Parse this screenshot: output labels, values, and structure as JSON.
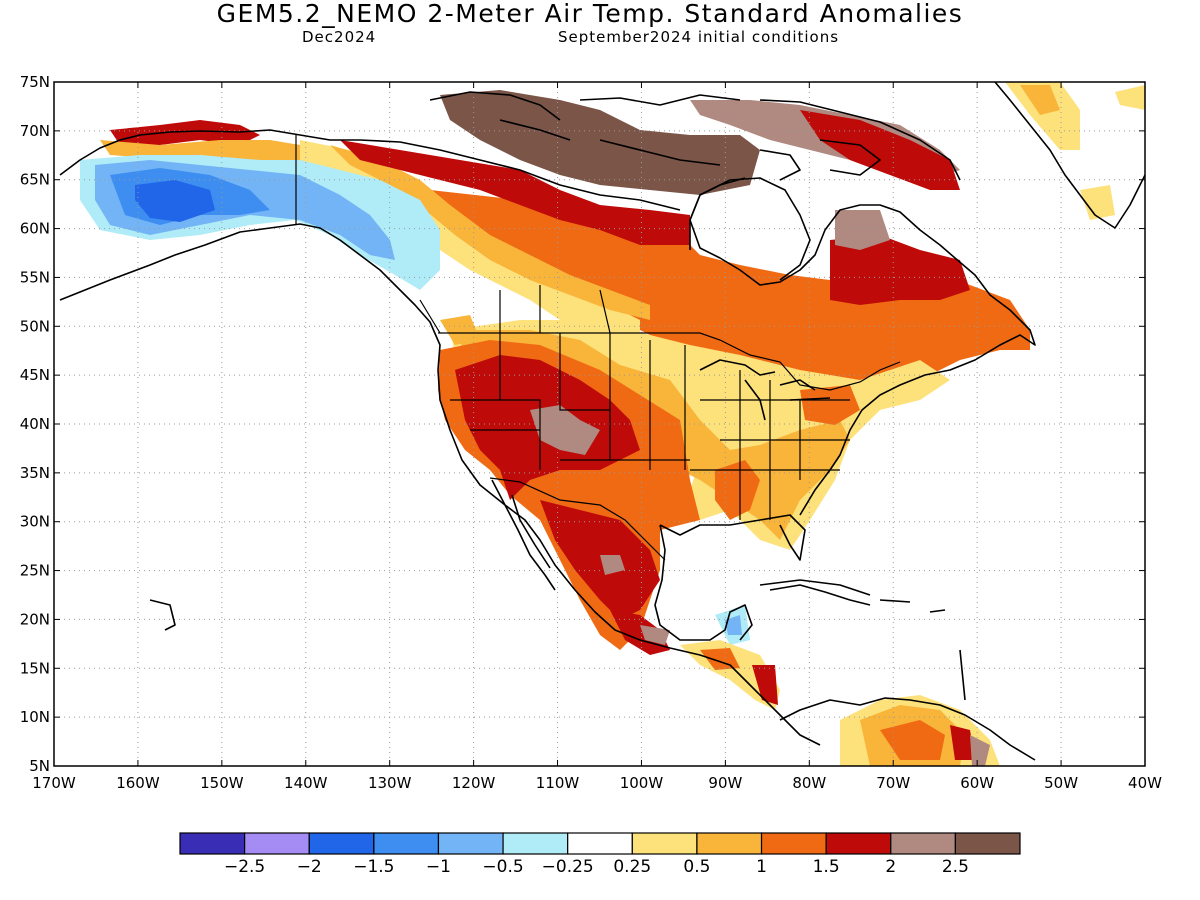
{
  "title": "GEM5.2_NEMO 2-Meter Air Temp. Standard Anomalies",
  "subtitle_left": "Dec2024",
  "subtitle_right": "September2024 initial conditions",
  "axes": {
    "lat_labels": [
      "75N",
      "70N",
      "65N",
      "60N",
      "55N",
      "50N",
      "45N",
      "40N",
      "35N",
      "30N",
      "25N",
      "20N",
      "15N",
      "10N",
      "5N"
    ],
    "lon_labels": [
      "170W",
      "160W",
      "150W",
      "140W",
      "130W",
      "120W",
      "110W",
      "100W",
      "90W",
      "80W",
      "70W",
      "60W",
      "50W",
      "40W"
    ],
    "grid": "dotted"
  },
  "colorbar": {
    "colors": [
      "#3a2db5",
      "#a58cf5",
      "#2166e8",
      "#3d8ef0",
      "#72b4f5",
      "#b0ecf7",
      "#ffffff",
      "#fde17a",
      "#f9b43a",
      "#f06a14",
      "#be0a08",
      "#b08a80",
      "#7a5548"
    ],
    "labels": [
      "−2.5",
      "−2",
      "−1.5",
      "−1",
      "−0.5",
      "−0.25",
      "0.25",
      "0.5",
      "1",
      "1.5",
      "2",
      "2.5"
    ]
  },
  "colors": {
    "coast": "#000000",
    "grid": "#9a9a9a"
  }
}
